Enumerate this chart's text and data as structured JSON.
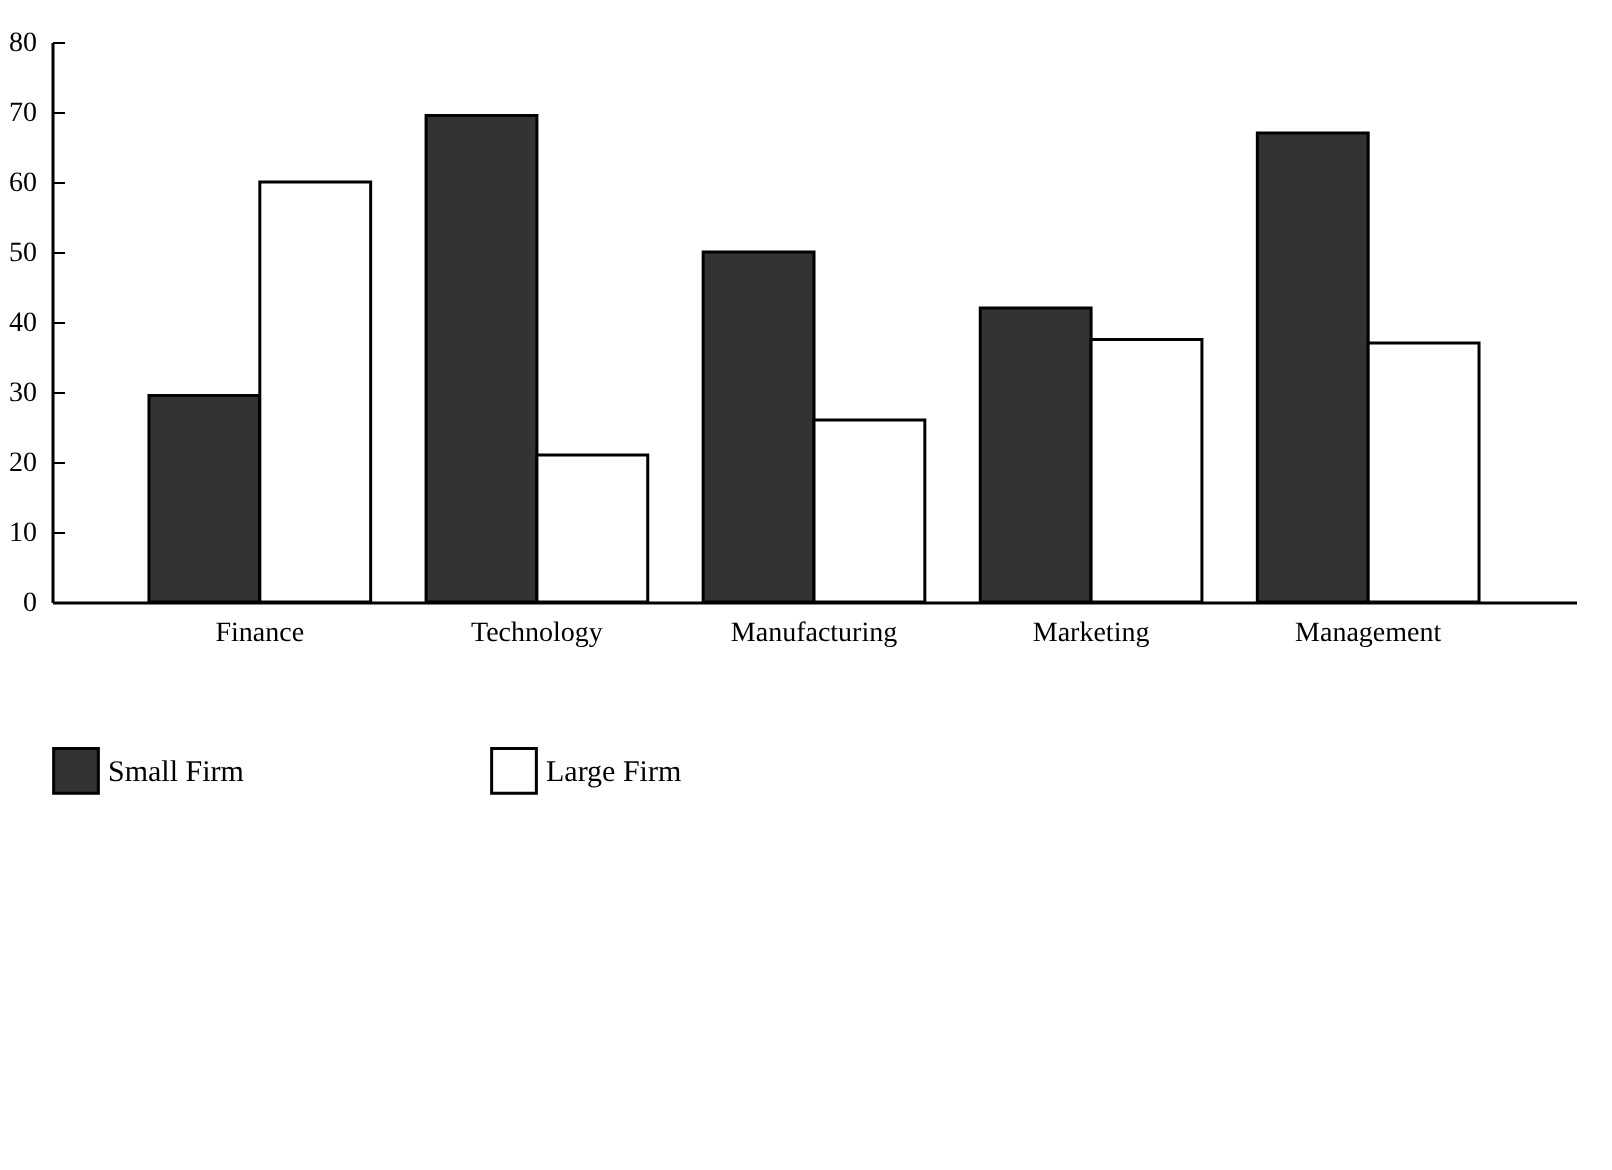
{
  "chart_data": {
    "type": "bar",
    "categories": [
      "Finance",
      "Technology",
      "Manufacturing",
      "Marketing",
      "Management"
    ],
    "series": [
      {
        "name": "Small Firm",
        "color": "#333333",
        "values": [
          29.5,
          69.5,
          50,
          42,
          67
        ]
      },
      {
        "name": "Large Firm",
        "color": "#ffffff",
        "values": [
          60,
          21,
          26,
          37.5,
          37
        ]
      }
    ],
    "ylim": [
      0,
      80
    ],
    "yticks": [
      0,
      10,
      20,
      30,
      40,
      50,
      60,
      70,
      80
    ],
    "grid": false,
    "legend": "bottom"
  }
}
